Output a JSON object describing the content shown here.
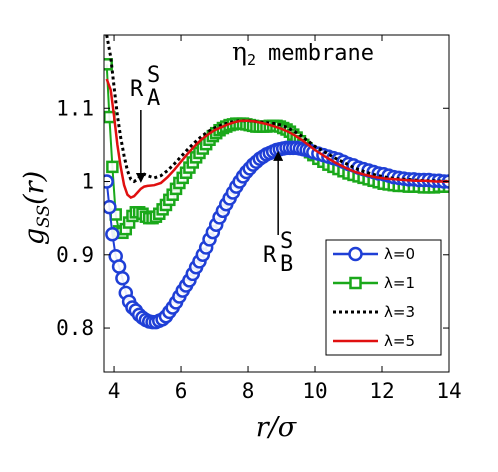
{
  "chart_data": {
    "type": "line",
    "title": "",
    "annotation_text": "membrane",
    "annotation_symbol": "η",
    "annotation_subscript": "2",
    "xlabel": "r/σ",
    "ylabel": "g_SS(r)",
    "xlim": [
      3.7,
      14
    ],
    "ylim": [
      0.74,
      1.2
    ],
    "xticks": [
      4,
      6,
      8,
      10,
      12,
      14
    ],
    "yticks": [
      0.8,
      0.9,
      1,
      1.1
    ],
    "xtick_labels": [
      "4",
      "6",
      "8",
      "10",
      "12",
      "14"
    ],
    "ytick_labels": [
      "0.8",
      "0.9",
      "1",
      "1.1"
    ],
    "grid": false,
    "legend_position": "bottom-right",
    "annotations": [
      {
        "label": "R",
        "superscript": "S",
        "subscript": "A",
        "arrow_to": [
          4.8,
          1.005
        ]
      },
      {
        "label": "R",
        "superscript": "S",
        "subscript": "B",
        "arrow_to": [
          8.9,
          1.035
        ]
      }
    ],
    "series": [
      {
        "name": "λ=0",
        "color": "#1f3fd6",
        "style": "circles",
        "x": [
          3.78,
          3.86,
          3.95,
          4.05,
          4.15,
          4.25,
          4.35,
          4.45,
          4.55,
          4.65,
          4.75,
          4.85,
          4.95,
          5.05,
          5.15,
          5.25,
          5.35,
          5.45,
          5.55,
          5.65,
          5.75,
          5.85,
          5.95,
          6.05,
          6.15,
          6.25,
          6.35,
          6.45,
          6.55,
          6.65,
          6.75,
          6.85,
          6.95,
          7.05,
          7.15,
          7.25,
          7.35,
          7.45,
          7.55,
          7.65,
          7.75,
          7.85,
          7.95,
          8.05,
          8.15,
          8.25,
          8.35,
          8.45,
          8.55,
          8.65,
          8.75,
          8.85,
          8.95,
          9.05,
          9.15,
          9.25,
          9.35,
          9.45,
          9.55,
          9.65,
          9.75,
          9.85,
          9.95,
          10.1,
          10.25,
          10.4,
          10.55,
          10.7,
          10.85,
          11.0,
          11.15,
          11.3,
          11.45,
          11.6,
          11.75,
          11.9,
          12.05,
          12.2,
          12.35,
          12.5,
          12.65,
          12.8,
          12.95,
          13.1,
          13.25,
          13.4,
          13.55,
          13.7,
          13.85,
          14.0
        ],
        "y": [
          1.0,
          0.965,
          0.928,
          0.898,
          0.884,
          0.868,
          0.848,
          0.836,
          0.828,
          0.824,
          0.818,
          0.814,
          0.811,
          0.809,
          0.808,
          0.808,
          0.81,
          0.812,
          0.816,
          0.822,
          0.828,
          0.835,
          0.843,
          0.851,
          0.858,
          0.865,
          0.874,
          0.883,
          0.891,
          0.9,
          0.91,
          0.921,
          0.931,
          0.941,
          0.951,
          0.96,
          0.969,
          0.977,
          0.985,
          0.993,
          1.0,
          1.007,
          1.013,
          1.018,
          1.023,
          1.027,
          1.031,
          1.034,
          1.037,
          1.039,
          1.041,
          1.043,
          1.044,
          1.045,
          1.046,
          1.046,
          1.046,
          1.046,
          1.045,
          1.044,
          1.043,
          1.042,
          1.04,
          1.038,
          1.036,
          1.034,
          1.032,
          1.03,
          1.027,
          1.024,
          1.022,
          1.019,
          1.017,
          1.015,
          1.013,
          1.011,
          1.01,
          1.008,
          1.006,
          1.005,
          1.004,
          1.003,
          1.003,
          1.002,
          1.002,
          1.002,
          1.001,
          1.001,
          1.0,
          1.0
        ]
      },
      {
        "name": "λ=1",
        "color": "#1aa81a",
        "style": "squares",
        "x": [
          3.78,
          3.86,
          3.95,
          4.05,
          4.15,
          4.25,
          4.35,
          4.45,
          4.55,
          4.65,
          4.75,
          4.85,
          4.95,
          5.05,
          5.15,
          5.25,
          5.35,
          5.45,
          5.55,
          5.65,
          5.75,
          5.85,
          5.95,
          6.05,
          6.15,
          6.25,
          6.35,
          6.45,
          6.55,
          6.65,
          6.75,
          6.85,
          6.95,
          7.05,
          7.15,
          7.25,
          7.35,
          7.45,
          7.55,
          7.65,
          7.75,
          7.85,
          7.95,
          8.05,
          8.15,
          8.25,
          8.35,
          8.45,
          8.55,
          8.65,
          8.75,
          8.85,
          8.95,
          9.05,
          9.15,
          9.25,
          9.35,
          9.45,
          9.55,
          9.65,
          9.75,
          9.85,
          9.95,
          10.1,
          10.25,
          10.4,
          10.55,
          10.7,
          10.85,
          11.0,
          11.15,
          11.3,
          11.45,
          11.6,
          11.75,
          11.9,
          12.05,
          12.2,
          12.35,
          12.5,
          12.65,
          12.8,
          12.95,
          13.1,
          13.25,
          13.4,
          13.55,
          13.7,
          13.85,
          14.0
        ],
        "y": [
          1.16,
          1.088,
          1.02,
          0.955,
          0.932,
          0.93,
          0.935,
          0.944,
          0.953,
          0.958,
          0.958,
          0.956,
          0.952,
          0.95,
          0.95,
          0.952,
          0.956,
          0.962,
          0.968,
          0.975,
          0.982,
          0.99,
          0.998,
          1.005,
          1.012,
          1.019,
          1.026,
          1.033,
          1.039,
          1.045,
          1.051,
          1.057,
          1.062,
          1.066,
          1.07,
          1.073,
          1.075,
          1.077,
          1.078,
          1.079,
          1.079,
          1.079,
          1.078,
          1.077,
          1.076,
          1.075,
          1.075,
          1.075,
          1.075,
          1.076,
          1.076,
          1.076,
          1.075,
          1.073,
          1.071,
          1.068,
          1.064,
          1.06,
          1.055,
          1.05,
          1.045,
          1.04,
          1.036,
          1.031,
          1.027,
          1.023,
          1.02,
          1.017,
          1.014,
          1.011,
          1.009,
          1.007,
          1.005,
          1.003,
          1.001,
          0.999,
          0.997,
          0.996,
          0.995,
          0.994,
          0.994,
          0.993,
          0.993,
          0.993,
          0.992,
          0.992,
          0.992,
          0.993,
          0.993,
          0.993
        ]
      },
      {
        "name": "λ=3",
        "color": "#000000",
        "style": "dotted",
        "x": [
          3.78,
          3.9,
          4.0,
          4.1,
          4.2,
          4.3,
          4.4,
          4.5,
          4.6,
          4.7,
          4.8,
          4.9,
          5.0,
          5.2,
          5.4,
          5.6,
          5.8,
          6.0,
          6.2,
          6.4,
          6.6,
          6.8,
          7.0,
          7.2,
          7.4,
          7.6,
          7.8,
          8.0,
          8.2,
          8.4,
          8.6,
          8.8,
          9.0,
          9.2,
          9.4,
          9.6,
          9.8,
          10.0,
          10.3,
          10.6,
          10.9,
          11.2,
          11.5,
          11.8,
          12.1,
          12.4,
          12.7,
          13.0,
          13.3,
          13.6,
          14.0
        ],
        "y": [
          1.2,
          1.17,
          1.13,
          1.09,
          1.06,
          1.035,
          1.015,
          1.003,
          1.0,
          1.003,
          1.008,
          1.01,
          1.008,
          1.005,
          1.008,
          1.015,
          1.024,
          1.034,
          1.044,
          1.053,
          1.061,
          1.068,
          1.073,
          1.077,
          1.08,
          1.082,
          1.083,
          1.083,
          1.082,
          1.081,
          1.08,
          1.079,
          1.077,
          1.073,
          1.068,
          1.062,
          1.055,
          1.048,
          1.04,
          1.032,
          1.025,
          1.018,
          1.013,
          1.009,
          1.006,
          1.004,
          1.003,
          1.002,
          1.001,
          1.001,
          1.0
        ]
      },
      {
        "name": "λ=5",
        "color": "#e01010",
        "style": "solid",
        "x": [
          3.78,
          3.9,
          4.0,
          4.1,
          4.2,
          4.3,
          4.4,
          4.5,
          4.6,
          4.7,
          4.8,
          4.9,
          5.0,
          5.2,
          5.4,
          5.6,
          5.8,
          6.0,
          6.2,
          6.4,
          6.6,
          6.8,
          7.0,
          7.2,
          7.4,
          7.6,
          7.8,
          8.0,
          8.2,
          8.4,
          8.6,
          8.8,
          9.0,
          9.2,
          9.4,
          9.6,
          9.8,
          10.0,
          10.3,
          10.6,
          10.9,
          11.2,
          11.5,
          11.8,
          12.1,
          12.4,
          12.7,
          13.0,
          13.3,
          13.6,
          14.0
        ],
        "y": [
          1.14,
          1.125,
          1.09,
          1.05,
          1.02,
          0.995,
          0.982,
          0.978,
          0.98,
          0.985,
          0.99,
          0.993,
          0.994,
          0.995,
          0.998,
          1.006,
          1.016,
          1.027,
          1.038,
          1.048,
          1.057,
          1.064,
          1.07,
          1.074,
          1.078,
          1.081,
          1.083,
          1.083,
          1.082,
          1.08,
          1.078,
          1.075,
          1.072,
          1.068,
          1.063,
          1.057,
          1.05,
          1.043,
          1.034,
          1.026,
          1.019,
          1.013,
          1.009,
          1.006,
          1.004,
          1.003,
          1.002,
          1.001,
          1.001,
          1.0,
          1.0
        ]
      }
    ]
  }
}
